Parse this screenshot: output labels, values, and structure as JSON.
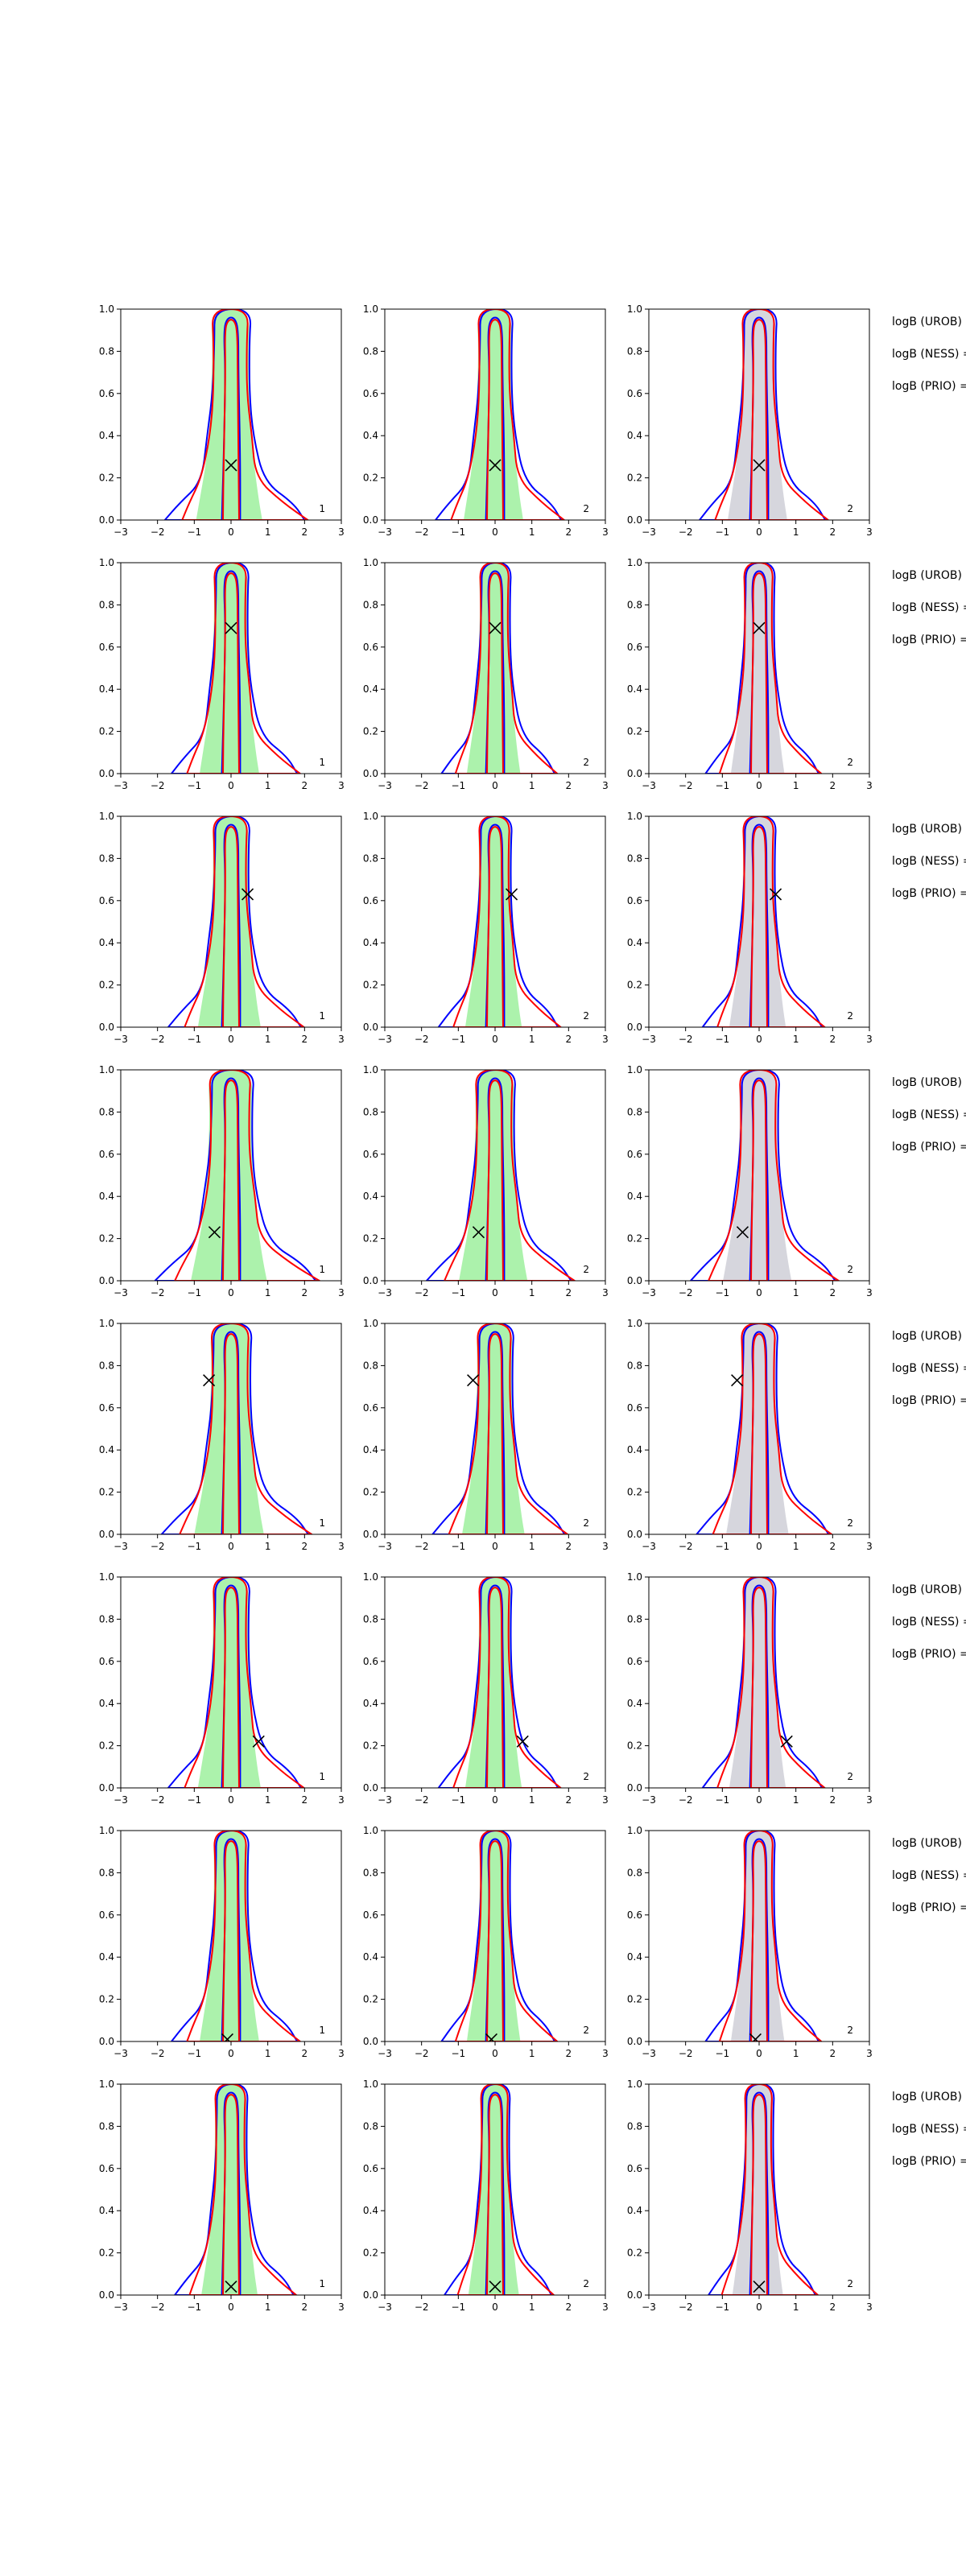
{
  "figure": {
    "columns": [
      {
        "tag": "1",
        "fill": "green"
      },
      {
        "tag": "2",
        "fill": "green"
      },
      {
        "tag": "2",
        "fill": "gray"
      }
    ],
    "side_labels": [
      "logB (UROB) =",
      "logB (NESS) =",
      "logB (PRIO) ="
    ],
    "colors": {
      "blue": "#0000ff",
      "red": "#ff0000",
      "green": "#90ee90",
      "gray": "#c8c8d2",
      "marker": "#000000"
    }
  },
  "chart_data": {
    "type": "contour",
    "xlim": [
      -3,
      3
    ],
    "ylim": [
      0,
      1
    ],
    "xticks": [
      "−3",
      "−2",
      "−1",
      "0",
      "1",
      "2",
      "3"
    ],
    "yticks": [
      "0.0",
      "0.2",
      "0.4",
      "0.6",
      "0.8",
      "1.0"
    ],
    "grid": false,
    "rows": [
      {
        "marker": [
          0.0,
          0.26
        ]
      },
      {
        "marker": [
          0.0,
          0.69
        ]
      },
      {
        "marker": [
          0.45,
          0.63
        ]
      },
      {
        "marker": [
          -0.45,
          0.23
        ]
      },
      {
        "marker": [
          -0.6,
          0.73
        ]
      },
      {
        "marker": [
          0.75,
          0.22
        ]
      },
      {
        "marker": [
          -0.1,
          0.01
        ]
      },
      {
        "marker": [
          0.0,
          0.04
        ]
      }
    ]
  }
}
